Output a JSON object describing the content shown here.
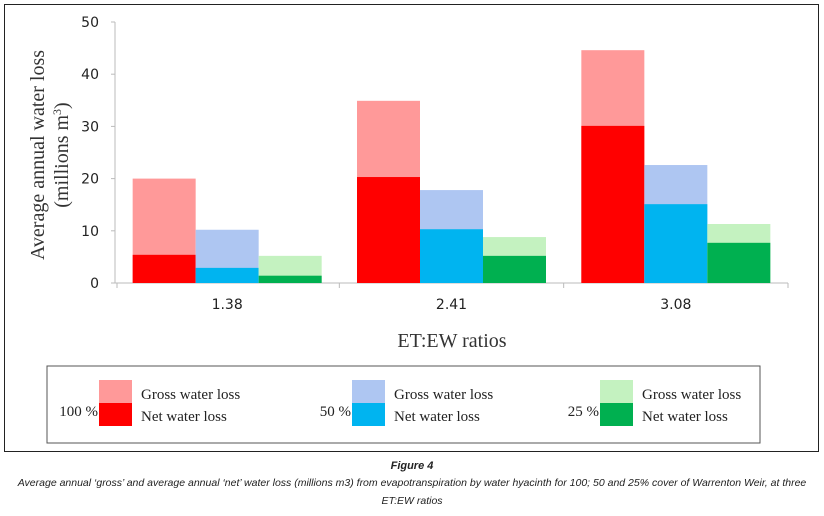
{
  "chart_data": {
    "type": "bar",
    "subtype": "overlapped-grouped",
    "title": "",
    "xlabel": "ET:EW ratios",
    "ylabel_line1": "Average annual water loss",
    "ylabel_line2": "(millions m",
    "ylabel_sup": "3",
    "ylabel_end": ")",
    "ylim": [
      0,
      50
    ],
    "yticks": [
      0,
      10,
      20,
      30,
      40,
      50
    ],
    "categories": [
      "1.38",
      "2.41",
      "3.08"
    ],
    "grid": false,
    "legend_position": "bottom",
    "series": [
      {
        "name": "100 % Gross water loss",
        "cover": "100 %",
        "kind": "gross",
        "color": "#ff9999",
        "values": [
          20.0,
          34.9,
          44.6
        ]
      },
      {
        "name": "100 % Net water loss",
        "cover": "100 %",
        "kind": "net",
        "color": "#ff0000",
        "values": [
          5.4,
          20.3,
          30.1
        ]
      },
      {
        "name": "50 % Gross water loss",
        "cover": "50 %",
        "kind": "gross",
        "color": "#aec6f2",
        "values": [
          10.2,
          17.8,
          22.6
        ]
      },
      {
        "name": "50 % Net water loss",
        "cover": "50 %",
        "kind": "net",
        "color": "#00b4f0",
        "values": [
          2.9,
          10.3,
          15.1
        ]
      },
      {
        "name": "25 % Gross water loss",
        "cover": "25 %",
        "kind": "gross",
        "color": "#c4f2c0",
        "values": [
          5.2,
          8.8,
          11.3
        ]
      },
      {
        "name": "25 % Net water loss",
        "cover": "25 %",
        "kind": "net",
        "color": "#00b050",
        "values": [
          1.4,
          5.2,
          7.7
        ]
      }
    ],
    "legend": [
      {
        "cover": "100 %",
        "gross_label": "Gross water loss",
        "net_label": "Net water loss",
        "gross_color": "#ff9999",
        "net_color": "#ff0000"
      },
      {
        "cover": "50 %",
        "gross_label": "Gross water loss",
        "net_label": "Net water loss",
        "gross_color": "#aec6f2",
        "net_color": "#00b4f0"
      },
      {
        "cover": "25 %",
        "gross_label": "Gross water loss",
        "net_label": "Net water loss",
        "gross_color": "#c4f2c0",
        "net_color": "#00b050"
      }
    ]
  },
  "caption": {
    "figure_label": "Figure 4",
    "text": "Average annual ‘gross’ and average annual ‘net’ water loss (millions m3) from evapotranspiration by water hyacinth for 100; 50 and 25% cover of Warrenton Weir, at three ET:EW ratios"
  }
}
